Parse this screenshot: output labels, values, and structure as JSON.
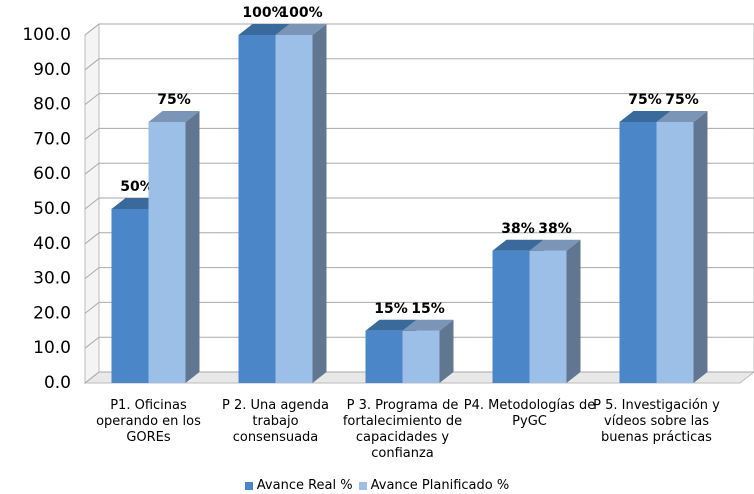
{
  "chart_data": {
    "type": "bar3d",
    "categories": [
      "P1. Oficinas operando en los GOREs",
      "P 2. Una agenda trabajo consensuada",
      "P 3. Programa de fortalecimiento de capacidades y confianza",
      "P4. Metodologías de PyGC",
      "P 5. Investigación y vídeos sobre las buenas prácticas"
    ],
    "series": [
      {
        "name": "Avance Real %",
        "color": "#4a86c8",
        "values": [
          50,
          100,
          15,
          38,
          75
        ],
        "value_labels": [
          "50%",
          "100%",
          "15%",
          "38%",
          "75%"
        ]
      },
      {
        "name": "Avance Planificado %",
        "color": "#9cbfe8",
        "values": [
          75,
          100,
          15,
          38,
          75
        ],
        "value_labels": [
          "75%",
          "100%",
          "15%",
          "38%",
          "75%"
        ]
      }
    ],
    "ylim": [
      0,
      100
    ],
    "yticks": [
      {
        "value": 0,
        "label": "0.0"
      },
      {
        "value": 10,
        "label": "10.0"
      },
      {
        "value": 20,
        "label": "20.0"
      },
      {
        "value": 30,
        "label": "30.0"
      },
      {
        "value": 40,
        "label": "40.0"
      },
      {
        "value": 50,
        "label": "50.0"
      },
      {
        "value": 60,
        "label": "60.0"
      },
      {
        "value": 70,
        "label": "70.0"
      },
      {
        "value": 80,
        "label": "80.0"
      },
      {
        "value": 90,
        "label": "90.0"
      },
      {
        "value": 100,
        "label": "100.0"
      }
    ],
    "grid": true,
    "legend": "bottom"
  }
}
